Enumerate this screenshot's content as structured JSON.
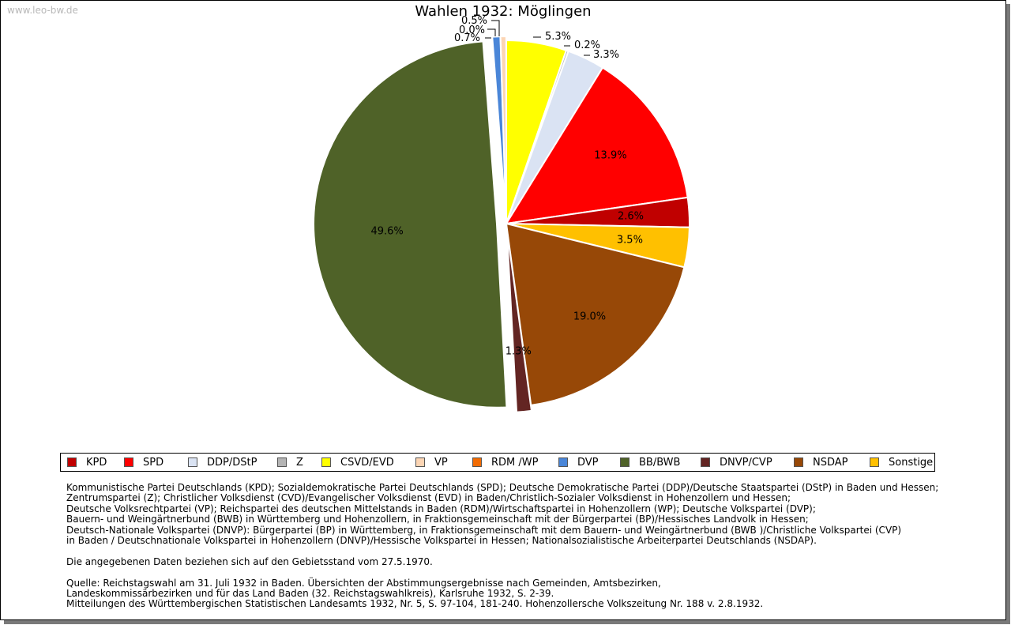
{
  "watermark": "www.leo-bw.de",
  "chart_data": {
    "type": "pie",
    "title": "Wahlen 1932: Möglingen",
    "categories": [
      "KPD",
      "SPD",
      "DDP/DStP",
      "Z",
      "CSVD/EVD",
      "VP",
      "RDM /WP",
      "DVP",
      "BB/BWB",
      "DNVP/CVP",
      "NSDAP",
      "Sonstige"
    ],
    "colors": [
      "#c00000",
      "#ff0000",
      "#dae3f3",
      "#b4b4b4",
      "#ffff00",
      "#fcd5b4",
      "#f26c04",
      "#4a86d8",
      "#4f6228",
      "#632523",
      "#974807",
      "#ffc000"
    ],
    "slices": [
      {
        "label": "CSVD/EVD",
        "value": 5.3,
        "text": "5.3%"
      },
      {
        "label": "Z",
        "value": 0.2,
        "text": "0.2%"
      },
      {
        "label": "DDP/DStP",
        "value": 3.3,
        "text": "3.3%"
      },
      {
        "label": "SPD",
        "value": 13.9,
        "text": "13.9%"
      },
      {
        "label": "KPD",
        "value": 2.6,
        "text": "2.6%"
      },
      {
        "label": "Sonstige",
        "value": 3.5,
        "text": "3.5%"
      },
      {
        "label": "NSDAP",
        "value": 19.0,
        "text": "19.0%"
      },
      {
        "label": "DNVP/CVP",
        "value": 1.3,
        "text": "1.3%"
      },
      {
        "label": "BB/BWB",
        "value": 49.6,
        "text": "49.6%"
      },
      {
        "label": "DVP",
        "value": 0.7,
        "text": "0.7%"
      },
      {
        "label": "RDM /WP",
        "value": 0.0,
        "text": "0.0%"
      },
      {
        "label": "VP",
        "value": 0.5,
        "text": "0.5%"
      }
    ],
    "legend_position": "bottom"
  },
  "notes": {
    "party_lines": [
      "Kommunistische Partei Deutschlands (KPD); Sozialdemokratische Partei Deutschlands (SPD); Deutsche Demokratische Partei (DDP)/Deutsche Staatspartei (DStP) in Baden und Hessen;",
      "Zentrumspartei (Z); Christlicher Volksdienst (CVD)/Evangelischer Volksdienst (EVD) in Baden/Christlich-Sozialer Volksdienst in Hohenzollern und Hessen;",
      "Deutsche Volksrechtpartei (VP); Reichspartei des deutschen Mittelstands in Baden (RDM)/Wirtschaftspartei in Hohenzollern (WP); Deutsche Volkspartei (DVP);",
      "Bauern- und Weingärtnerbund (BWB) in Württemberg und Hohenzollern, in Fraktionsgemeinschaft mit der Bürgerpartei (BP)/Hessisches Landvolk in Hessen;",
      "Deutsch-Nationale Volkspartei (DNVP): Bürgerpartei (BP) in Württemberg, in Fraktionsgemeinschaft mit dem Bauern- und Weingärtnerbund (BWB )/Christliche Volkspartei (CVP)",
      "in Baden / Deutschnationale Volkspartei in Hohenzollern (DNVP)/Hessische Volkspartei in Hessen; Nationalsozialistische Arbeiterpartei Deutschlands (NSDAP)."
    ],
    "territory_line": "Die angegebenen Daten beziehen sich auf den Gebietsstand vom 27.5.1970.",
    "source_lines": [
      "Quelle: Reichstagswahl am 31. Juli 1932 in Baden. Übersichten der Abstimmungsergebnisse nach Gemeinden, Amtsbezirken,",
      "Landeskommissärbezirken und für das Land Baden (32. Reichstagswahlkreis), Karlsruhe 1932, S. 2-39.",
      "Mitteilungen des Württembergischen Statistischen Landesamts 1932, Nr. 5, S. 97-104, 181-240. Hohenzollersche Volkszeitung Nr. 188 v. 2.8.1932."
    ]
  }
}
